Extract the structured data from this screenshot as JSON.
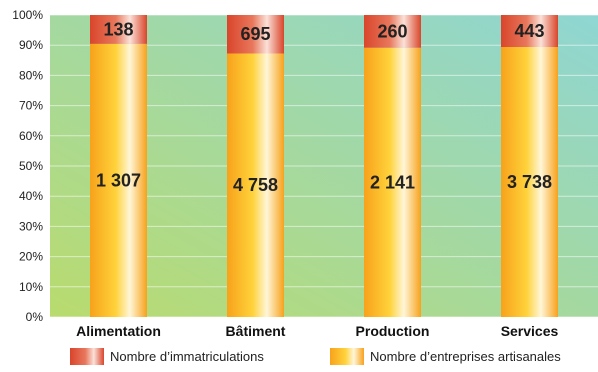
{
  "chart_data": {
    "type": "bar",
    "stacked": "percent",
    "categories": [
      "Alimentation",
      "Bâtiment",
      "Production",
      "Services"
    ],
    "series": [
      {
        "name": "Nombre d’entreprises artisanales",
        "values": [
          1307,
          4758,
          2141,
          3738
        ],
        "labels": [
          "1 307",
          "4 758",
          "2 141",
          "3 738"
        ],
        "color": "#F7A21B"
      },
      {
        "name": "Nombre d’immatriculations",
        "values": [
          138,
          695,
          260,
          443
        ],
        "labels": [
          "138",
          "695",
          "260",
          "443"
        ],
        "color": "#D9452B"
      }
    ],
    "yticks": [
      "0%",
      "10%",
      "20%",
      "30%",
      "40%",
      "50%",
      "60%",
      "70%",
      "80%",
      "90%",
      "100%"
    ],
    "ylim": [
      0,
      100
    ],
    "grid": true,
    "legend_position": "bottom",
    "background_gradient": [
      "#B9DB6E",
      "#8FD6D3"
    ]
  }
}
